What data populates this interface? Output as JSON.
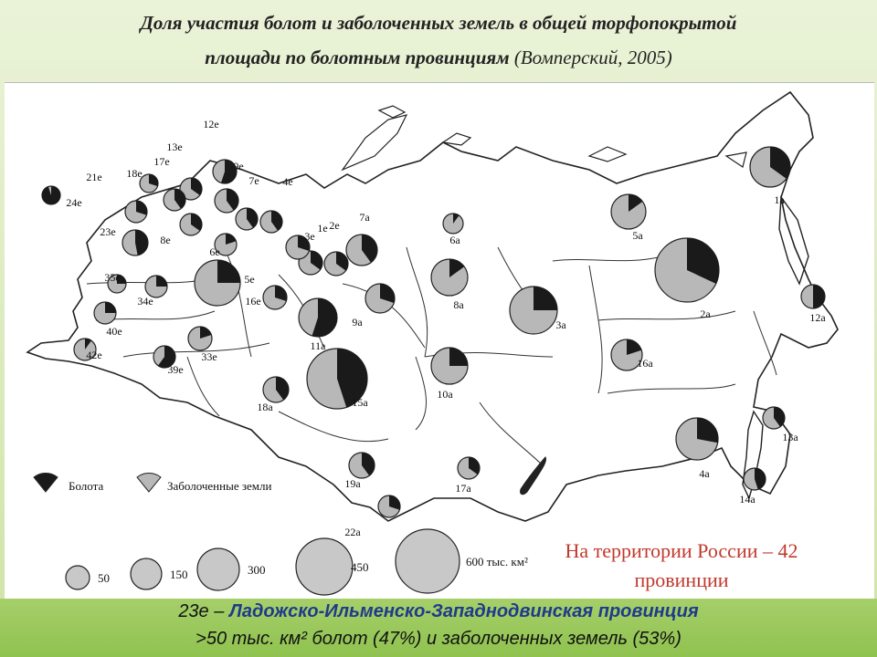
{
  "title": {
    "line1": "Доля участия болот и заболоченных земель в общей торфопокрытой",
    "line2_bold": "площади по болотным провинциям",
    "line2_source": "(Вомперский, 2005)"
  },
  "map": {
    "colors": {
      "bog": "#1a1a1a",
      "wetland": "#b8b8b8",
      "outline": "#222222"
    },
    "provinces": [
      {
        "id": "1a",
        "bog": 0.35
      },
      {
        "id": "2a",
        "bog": 0.32
      },
      {
        "id": "3a",
        "bog": 0.25
      },
      {
        "id": "4a",
        "bog": 0.28
      },
      {
        "id": "5a",
        "bog": 0.15
      },
      {
        "id": "6a",
        "bog": 0.1
      },
      {
        "id": "7a",
        "bog": 0.4
      },
      {
        "id": "8a",
        "bog": 0.15
      },
      {
        "id": "9a",
        "bog": 0.3
      },
      {
        "id": "10a",
        "bog": 0.25
      },
      {
        "id": "11a",
        "bog": 0.55
      },
      {
        "id": "12a",
        "bog": 0.5
      },
      {
        "id": "13a",
        "bog": 0.4
      },
      {
        "id": "14a",
        "bog": 0.45
      },
      {
        "id": "15a",
        "bog": 0.45
      },
      {
        "id": "16a",
        "bog": 0.2
      },
      {
        "id": "17a",
        "bog": 0.35
      },
      {
        "id": "18a",
        "bog": 0.4
      },
      {
        "id": "19a",
        "bog": 0.4
      },
      {
        "id": "22a",
        "bog": 0.3
      },
      {
        "id": "1e",
        "bog": 0.35
      },
      {
        "id": "2e",
        "bog": 0.35
      },
      {
        "id": "3e",
        "bog": 0.3
      },
      {
        "id": "4e",
        "bog": 0.4
      },
      {
        "id": "5e",
        "bog": 0.25
      },
      {
        "id": "6e",
        "bog": 0.2
      },
      {
        "id": "7e",
        "bog": 0.4
      },
      {
        "id": "8e",
        "bog": 0.35
      },
      {
        "id": "9e",
        "bog": 0.4
      },
      {
        "id": "12e",
        "bog": 0.55
      },
      {
        "id": "13e",
        "bog": 0.35
      },
      {
        "id": "16e",
        "bog": 0.3
      },
      {
        "id": "17e",
        "bog": 0.4
      },
      {
        "id": "18e",
        "bog": 0.3
      },
      {
        "id": "21e",
        "bog": 0.3
      },
      {
        "id": "23e",
        "bog": 0.47
      },
      {
        "id": "24e",
        "bog": 0.95
      },
      {
        "id": "33e",
        "bog": 0.2
      },
      {
        "id": "34e",
        "bog": 0.25
      },
      {
        "id": "35e",
        "bog": 0.25
      },
      {
        "id": "39e",
        "bog": 0.6
      },
      {
        "id": "40e",
        "bog": 0.25
      },
      {
        "id": "42e",
        "bog": 0.1
      }
    ]
  },
  "legend": {
    "bog_label": "Болота",
    "wetland_label": "Заболоченные земли",
    "sizes": [
      "50",
      "150",
      "300",
      "450",
      "600 тыс. км²"
    ]
  },
  "note": "На территории России – 42 провинции",
  "footer": {
    "code": "23е –",
    "province": "Ладожско-Ильменско-Западнодвинская провинция",
    "line2": ">50 тыс. км² болот (47%) и заболоченных земель (53%)"
  }
}
